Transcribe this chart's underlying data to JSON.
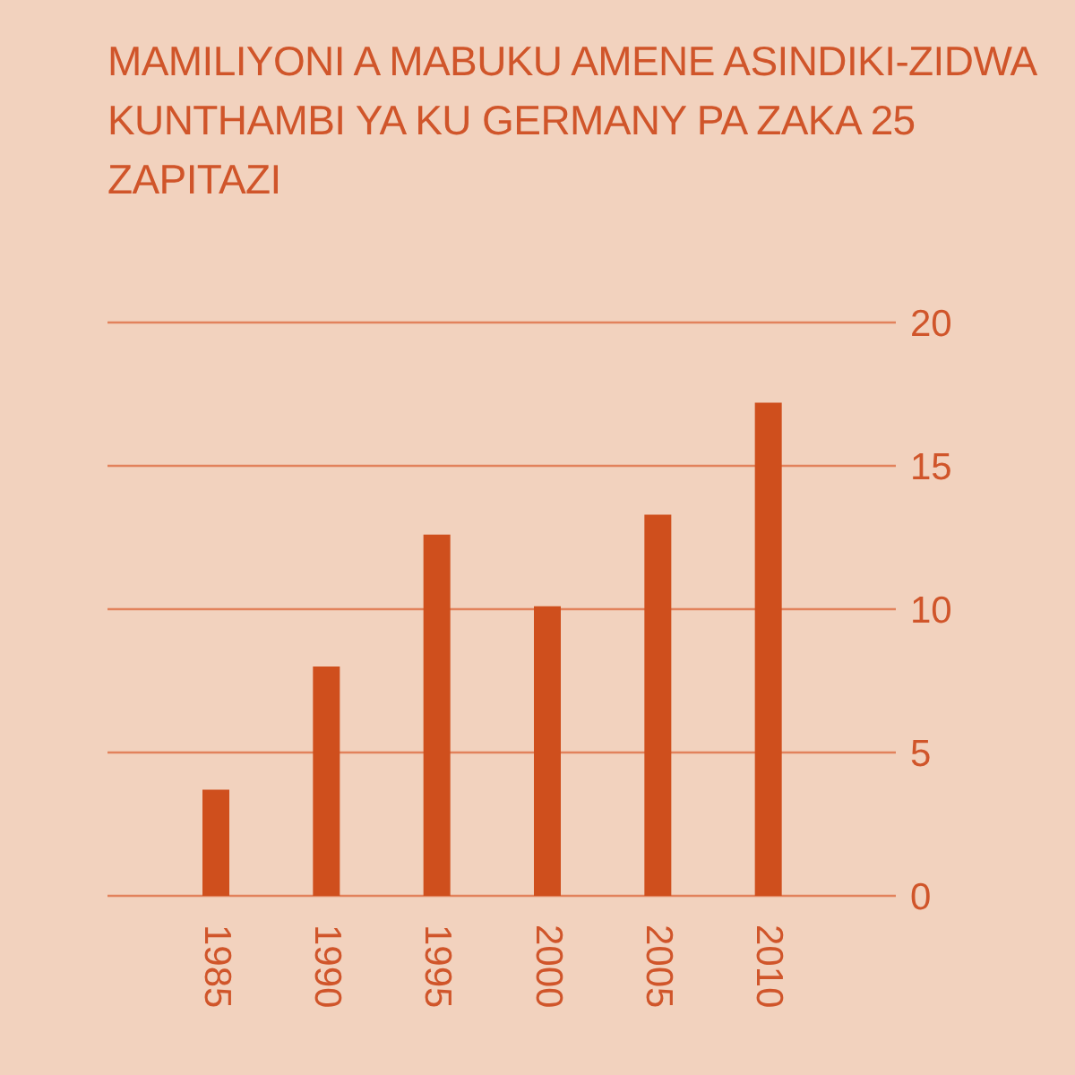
{
  "chart_data": {
    "type": "bar",
    "title": "MAMILIYONI A MABUKU AMENE ASINDIKI-ZIDWA KUNTHAMBI YA KU GERMANY PA ZAKA 25 ZAPITAZI",
    "categories": [
      "1985",
      "1990",
      "1995",
      "2000",
      "2005",
      "2010"
    ],
    "values": [
      3.7,
      8.0,
      12.6,
      10.1,
      13.3,
      17.2
    ],
    "color": "#cf4f1d",
    "ylim": [
      0,
      20
    ],
    "yticks": [
      0,
      5,
      10,
      15,
      20
    ],
    "grid": "y"
  }
}
